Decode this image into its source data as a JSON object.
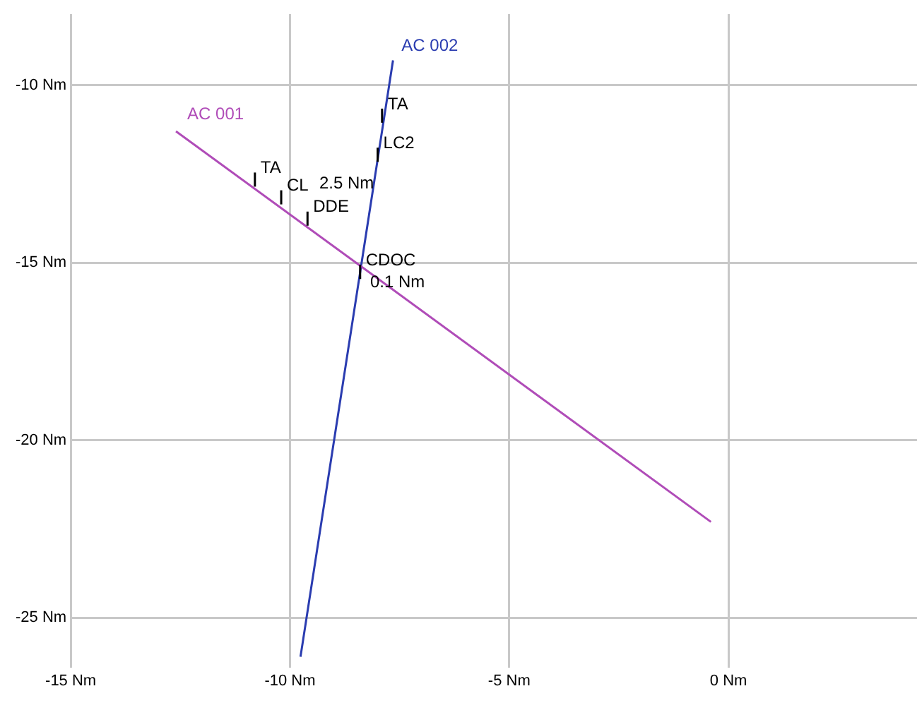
{
  "chart_data": {
    "type": "line",
    "xlim": [
      -15,
      4.3
    ],
    "ylim": [
      -26.4,
      -8
    ],
    "xticks": [
      {
        "value": -15,
        "label": "-15 Nm"
      },
      {
        "value": -10,
        "label": "-10 Nm"
      },
      {
        "value": -5,
        "label": "-5 Nm"
      },
      {
        "value": 0,
        "label": "0 Nm"
      }
    ],
    "yticks": [
      {
        "value": -25,
        "label": "-25 Nm"
      },
      {
        "value": -20,
        "label": "-20 Nm"
      },
      {
        "value": -15,
        "label": "-15 Nm"
      },
      {
        "value": -10,
        "label": "-10 Nm"
      }
    ],
    "grid": true,
    "legend": false,
    "marker": "none",
    "line_style": "solid",
    "series": [
      {
        "name": "AC 001",
        "color": "#b04cb8",
        "x": [
          -12.6,
          -0.4
        ],
        "values": [
          -11.3,
          -22.3
        ]
      },
      {
        "name": "AC 002",
        "color": "#2a3cb0",
        "x": [
          -9.76,
          -7.65
        ],
        "values": [
          -26.1,
          -9.3
        ]
      }
    ],
    "annotations": [
      {
        "text": "TA",
        "x": -10.8,
        "y": -12.7
      },
      {
        "text": "CL",
        "x": -10.2,
        "y": -13.2
      },
      {
        "text": "DDE",
        "x": -9.6,
        "y": -13.8
      },
      {
        "text": "TA",
        "x": -7.9,
        "y": -10.9
      },
      {
        "text": "LC2",
        "x": -8.0,
        "y": -12.0
      },
      {
        "text": "CDOC",
        "x": -8.4,
        "y": -15.3
      },
      "2.5 Nm",
      "0.1 Nm"
    ]
  }
}
